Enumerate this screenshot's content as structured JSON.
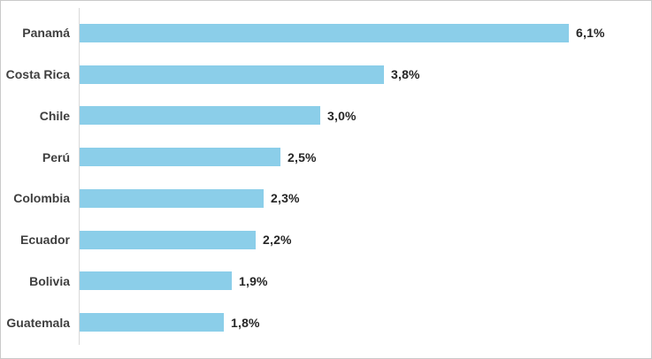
{
  "chart_data": {
    "type": "bar",
    "orientation": "horizontal",
    "title": "",
    "xlabel": "",
    "ylabel": "",
    "grid": false,
    "legend": false,
    "categories": [
      "Panamá",
      "Costa Rica",
      "Chile",
      "Perú",
      "Colombia",
      "Ecuador",
      "Bolivia",
      "Guatemala"
    ],
    "values": [
      6.1,
      3.8,
      3.0,
      2.5,
      2.3,
      2.2,
      1.9,
      1.8
    ],
    "value_labels": [
      "6,1%",
      "3,8%",
      "3,0%",
      "2,5%",
      "2,3%",
      "2,2%",
      "1,9%",
      "1,8%"
    ],
    "bar_color": "#8bcee9",
    "category_label_color": "#3f3f3f",
    "value_label_color": "#262626",
    "axis_line_color": "#d9d9d9",
    "frame_border_color": "#c9c9c9"
  }
}
